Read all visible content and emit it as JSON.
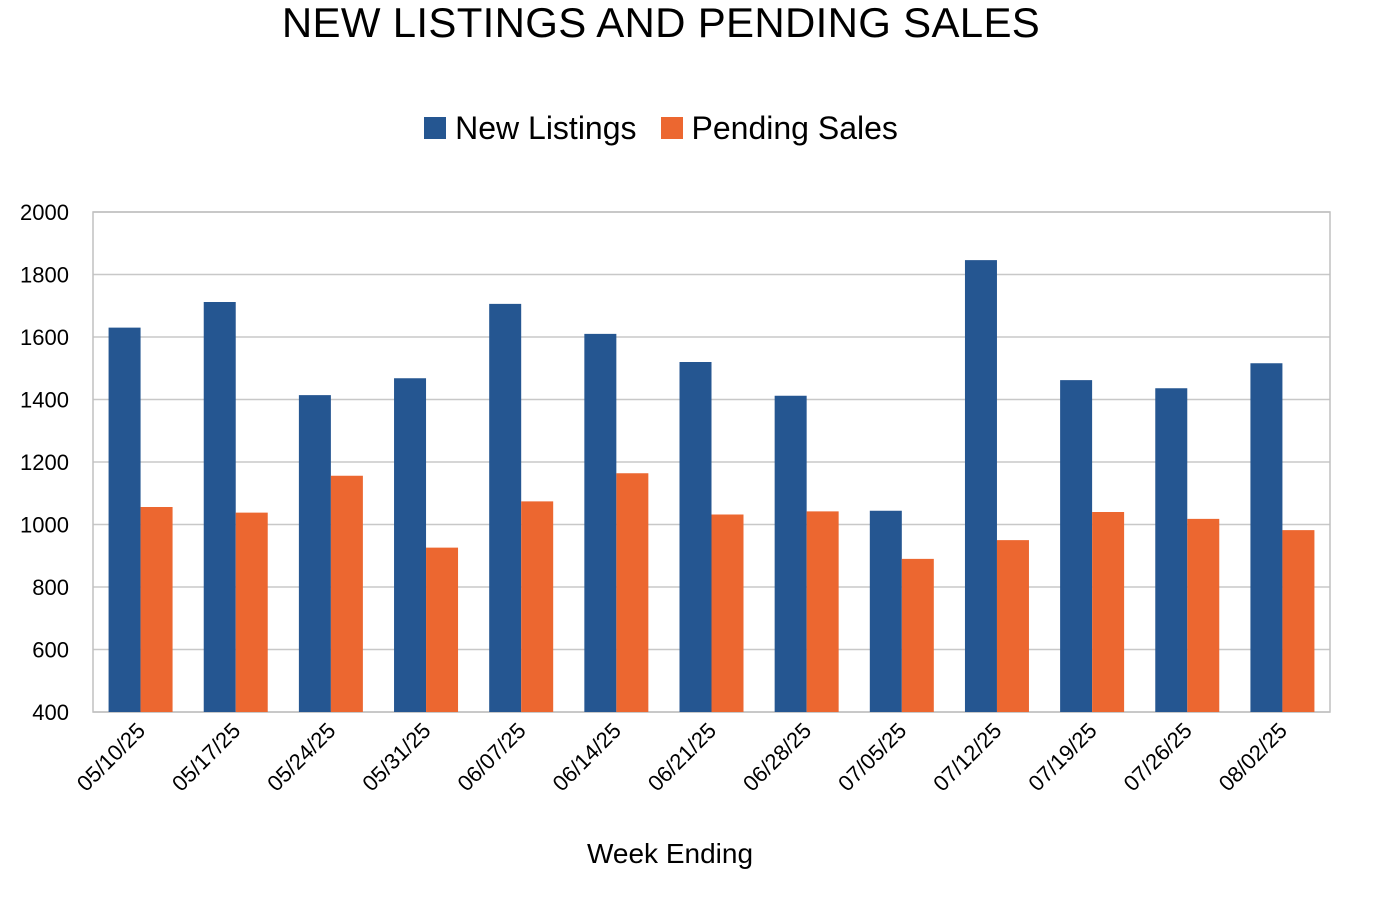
{
  "chart_data": {
    "type": "bar",
    "title": "NEW LISTINGS AND PENDING SALES",
    "xlabel": "Week Ending",
    "ylabel": "",
    "ylim": [
      400,
      2000
    ],
    "yticks": [
      400,
      600,
      800,
      1000,
      1200,
      1400,
      1600,
      1800,
      2000
    ],
    "grid": true,
    "legend_position": "top-center",
    "categories": [
      "05/10/25",
      "05/17/25",
      "05/24/25",
      "05/31/25",
      "06/07/25",
      "06/14/25",
      "06/21/25",
      "06/28/25",
      "07/05/25",
      "07/12/25",
      "07/19/25",
      "07/26/25",
      "08/02/25"
    ],
    "series": [
      {
        "name": "New Listings",
        "color": "#255691",
        "values": [
          1630,
          1712,
          1414,
          1468,
          1706,
          1610,
          1520,
          1412,
          1044,
          1846,
          1462,
          1436,
          1516
        ]
      },
      {
        "name": "Pending Sales",
        "color": "#ec6730",
        "values": [
          1056,
          1038,
          1156,
          926,
          1074,
          1164,
          1032,
          1042,
          890,
          950,
          1040,
          1018,
          982
        ]
      }
    ]
  }
}
